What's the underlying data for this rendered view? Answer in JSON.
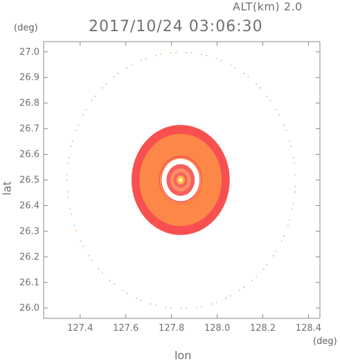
{
  "header": {
    "altitude": "ALT(km)  2.0",
    "datetime": "2017/10/24 03:06:30"
  },
  "chart_data": {
    "type": "heatmap",
    "xlabel": "lon",
    "ylabel": "lat",
    "x_unit": "(deg)",
    "y_unit": "(deg)",
    "xlim": [
      127.24,
      128.45
    ],
    "ylim": [
      25.96,
      27.04
    ],
    "x_ticks": [
      "127.4",
      "127.6",
      "127.8",
      "128.0",
      "128.2",
      "128.4"
    ],
    "y_ticks": [
      "26.0",
      "26.1",
      "26.2",
      "26.3",
      "26.4",
      "26.5",
      "26.6",
      "26.7",
      "26.8",
      "26.9",
      "27.0"
    ],
    "center": {
      "lon": 127.84,
      "lat": 26.5
    },
    "rings": [
      {
        "outer_radius_deg": 0.215,
        "color": "#f85050"
      },
      {
        "outer_radius_deg": 0.18,
        "color": "#fc8848"
      },
      {
        "outer_radius_deg": 0.095,
        "color": "#f85858"
      },
      {
        "outer_radius_deg": 0.083,
        "color": "#ffffff"
      },
      {
        "outer_radius_deg": 0.062,
        "color": "#f86060"
      },
      {
        "outer_radius_deg": 0.045,
        "color": "#fc9060"
      },
      {
        "outer_radius_deg": 0.03,
        "color": "#f86060"
      },
      {
        "outer_radius_deg": 0.018,
        "color": "#fcb050"
      },
      {
        "outer_radius_deg": 0.008,
        "color": "#ffffa0"
      }
    ],
    "scan_circle_radius_deg": 0.5,
    "scan_circle_colors": [
      "#90d060",
      "#f8a040",
      "#60b8e0",
      "#a0d070"
    ]
  }
}
